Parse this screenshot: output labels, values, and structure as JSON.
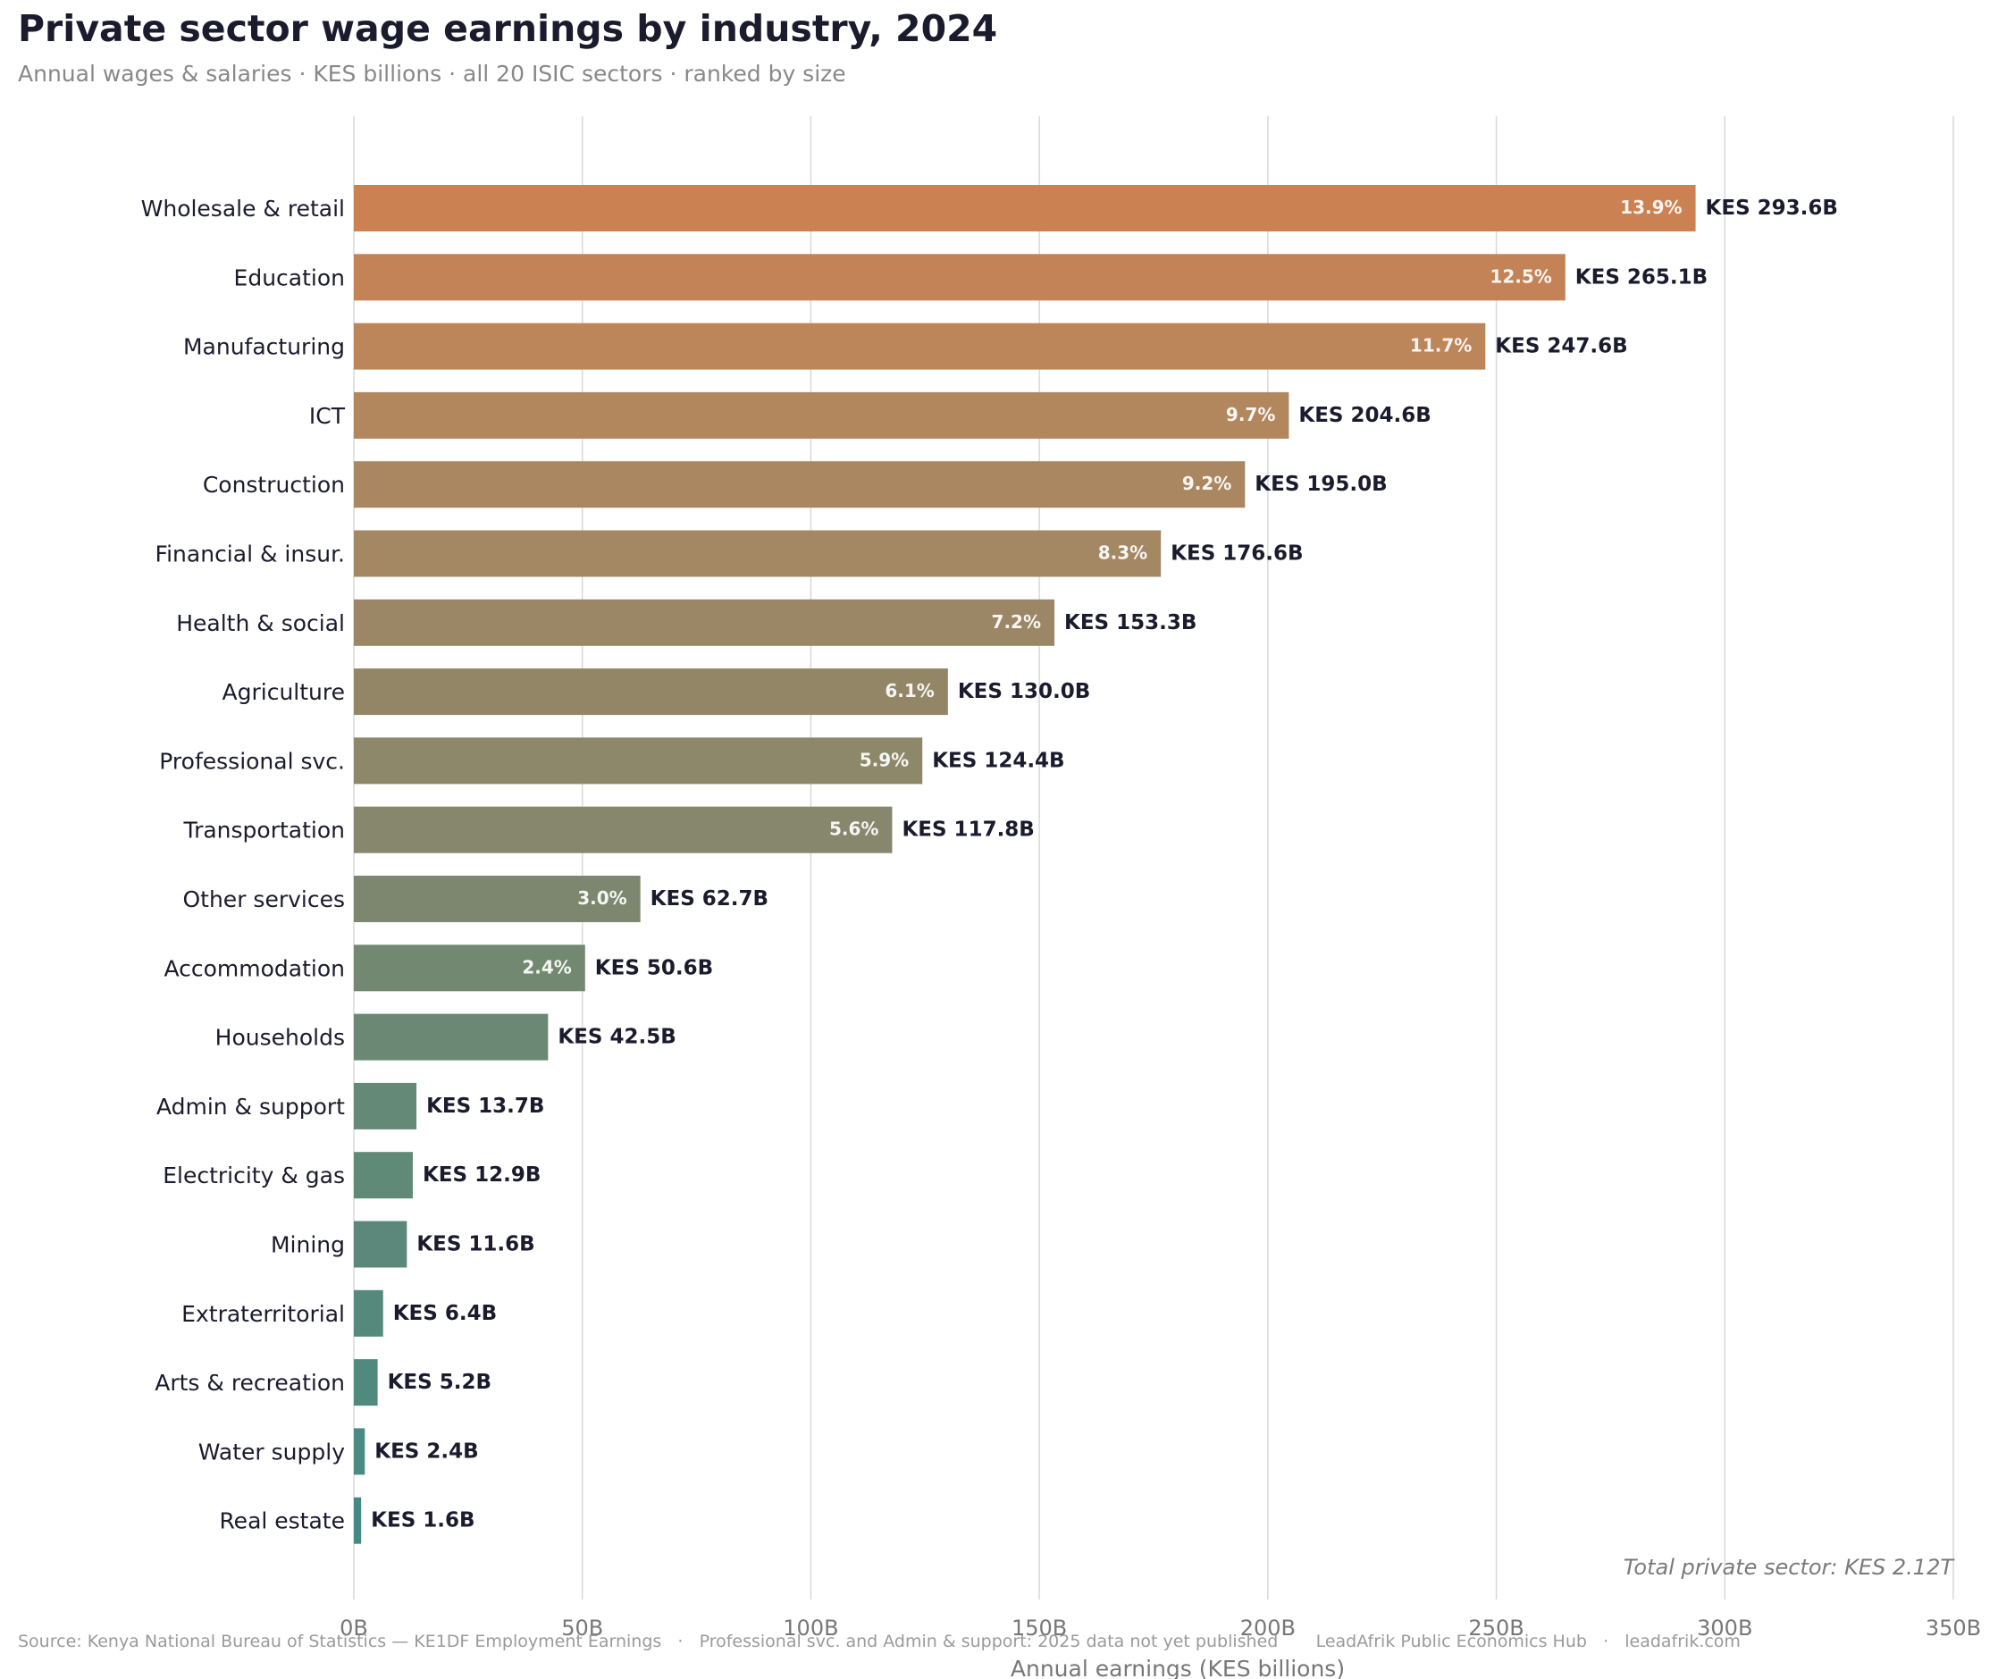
{
  "title": "Private sector wage earnings by industry, 2024",
  "subtitle": "Annual wages & salaries · KES billions · all 20 ISIC sectors · ranked by size",
  "footer": "Source: Kenya National Bureau of Statistics — KE1DF Employment Earnings   ·   Professional svc. and Admin & support: 2025 data not yet published       LeadAfrik Public Economics Hub   ·   leadafrik.com",
  "chart_data": {
    "type": "bar",
    "orientation": "horizontal",
    "xlabel": "Annual earnings (KES billions)",
    "xlim": [
      0,
      350
    ],
    "xticks": [
      0,
      50,
      100,
      150,
      200,
      250,
      300,
      350
    ],
    "xtick_labels": [
      "0B",
      "50B",
      "100B",
      "150B",
      "200B",
      "250B",
      "300B",
      "350B"
    ],
    "grid": "vertical",
    "annotation": "Total private sector: KES 2.12T",
    "categories": [
      "Wholesale & retail",
      "Education",
      "Manufacturing",
      "ICT",
      "Construction",
      "Financial & insur.",
      "Health & social",
      "Agriculture",
      "Professional svc.",
      "Transportation",
      "Other services",
      "Accommodation",
      "Households",
      "Admin & support",
      "Electricity & gas",
      "Mining",
      "Extraterritorial",
      "Arts & recreation",
      "Water supply",
      "Real estate"
    ],
    "values": [
      293.6,
      265.1,
      247.6,
      204.6,
      195.0,
      176.6,
      153.3,
      130.0,
      124.4,
      117.8,
      62.7,
      50.6,
      42.5,
      13.7,
      12.9,
      11.6,
      6.4,
      5.2,
      2.4,
      1.6
    ],
    "value_labels": [
      "KES 293.6B",
      "KES 265.1B",
      "KES 247.6B",
      "KES 204.6B",
      "KES 195.0B",
      "KES 176.6B",
      "KES 153.3B",
      "KES 130.0B",
      "KES 124.4B",
      "KES 117.8B",
      "KES 62.7B",
      "KES 50.6B",
      "KES 42.5B",
      "KES 13.7B",
      "KES 12.9B",
      "KES 11.6B",
      "KES 6.4B",
      "KES 5.2B",
      "KES 2.4B",
      "KES 1.6B"
    ],
    "share_labels": [
      "13.9%",
      "12.5%",
      "11.7%",
      "9.7%",
      "9.2%",
      "8.3%",
      "7.2%",
      "6.1%",
      "5.9%",
      "5.6%",
      "3.0%",
      "2.4%",
      "",
      "",
      "",
      "",
      "",
      "",
      "",
      ""
    ],
    "colors": [
      "#cc8152",
      "#c38356",
      "#bd855a",
      "#b3875e",
      "#ab8761",
      "#a48763",
      "#9b8765",
      "#928667",
      "#8d8869",
      "#86876c",
      "#7d876f",
      "#738871",
      "#6a8874",
      "#658977",
      "#608a78",
      "#5b887a",
      "#55897c",
      "#50897e",
      "#4b8a80",
      "#458a82"
    ]
  }
}
